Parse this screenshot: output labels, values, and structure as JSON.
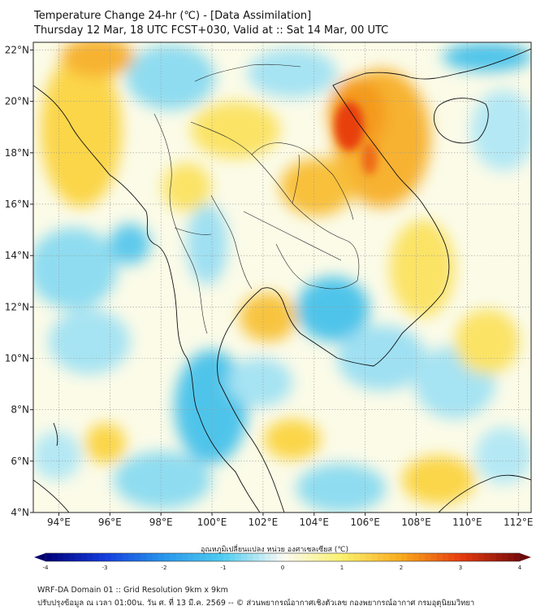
{
  "title": {
    "line1": "Temperature Change 24-hr (℃) - [Data Assimilation]",
    "line2": "Thursday 12 Mar, 18 UTC FCST+030, Valid at :: Sat 14 Mar, 00 UTC"
  },
  "map": {
    "lon_range": [
      93,
      112.5
    ],
    "lat_range": [
      4,
      22.3
    ],
    "lon_ticks": [
      "94°E",
      "96°E",
      "98°E",
      "100°E",
      "102°E",
      "104°E",
      "106°E",
      "108°E",
      "110°E",
      "112°E"
    ],
    "lon_tick_values": [
      94,
      96,
      98,
      100,
      102,
      104,
      106,
      108,
      110,
      112
    ],
    "lat_ticks": [
      "4°N",
      "6°N",
      "8°N",
      "10°N",
      "12°N",
      "14°N",
      "16°N",
      "18°N",
      "20°N",
      "22°N"
    ],
    "lat_tick_values": [
      4,
      6,
      8,
      10,
      12,
      14,
      16,
      18,
      20,
      22
    ],
    "grid": true,
    "colors": {
      "warm_strong": "#e8400f",
      "warm_orange": "#f7a21a",
      "warm_yellow": "#fbe14a",
      "neutral": "#fbfbe8",
      "cool_light": "#9fe0f2",
      "cool": "#4fc4ea"
    }
  },
  "colorbar": {
    "title": "อุณหภูมิเปลี่ยนแปลง หน่วย องศาเซลเซียส (℃)",
    "range": [
      -4,
      4
    ],
    "tick_labels": [
      "-4",
      "-3",
      "-2",
      "-1",
      "0",
      "1",
      "2",
      "3",
      "4"
    ],
    "tick_values": [
      -4,
      -3,
      -2,
      -1,
      0,
      1,
      2,
      3,
      4
    ]
  },
  "footer": {
    "line1": "WRF-DA Domain 01 :: Grid Resolution 9km x 9km",
    "line2": "ปรับปรุงข้อมูล ณ เวลา 01:00น. วัน ศ. ที่ 13 มี.ค. 2569 -- © ส่วนพยากรณ์อากาศเชิงตัวเลข กองพยากรณ์อากาศ กรมอุตุนิยมวิทยา"
  }
}
